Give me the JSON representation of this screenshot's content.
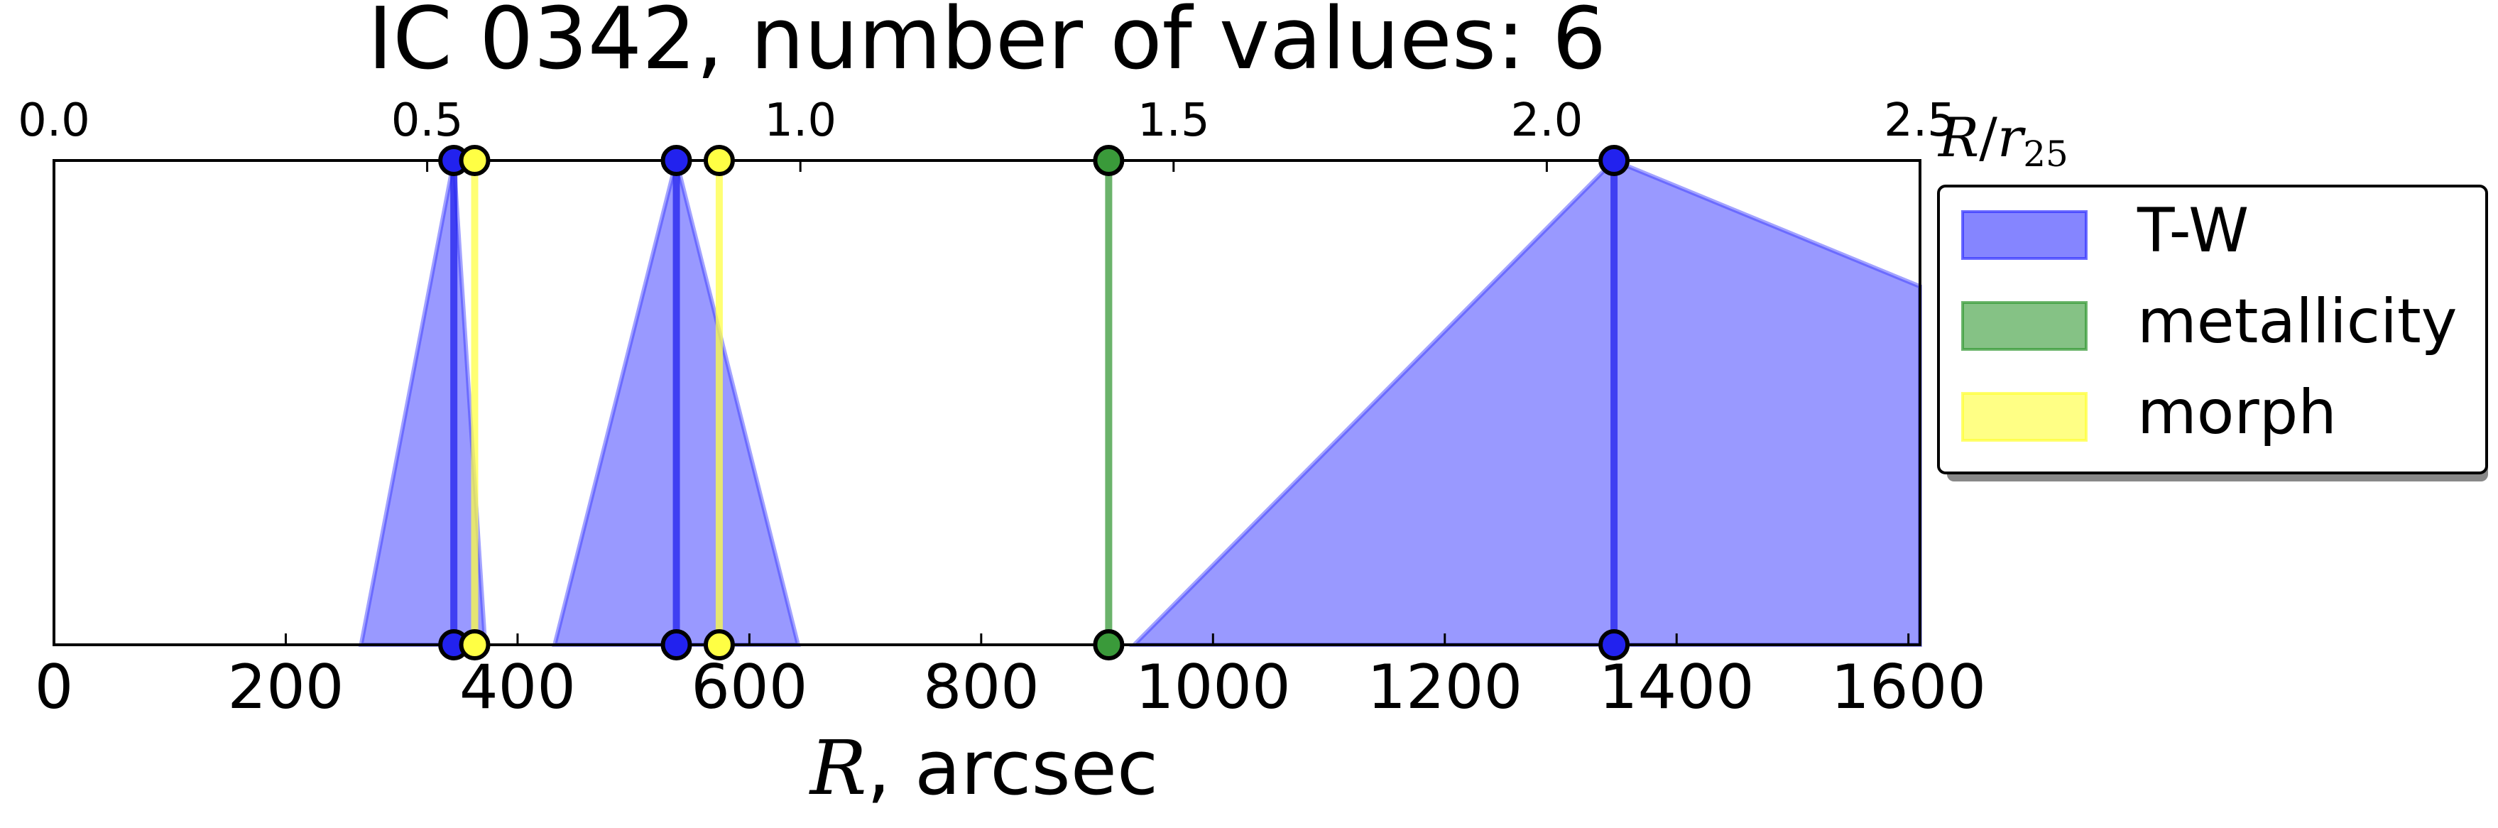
{
  "chart_data": {
    "type": "area",
    "title": "IC 0342, number of values: 6",
    "xlabel_symbol": "R",
    "xlabel_unit": ", arcsec",
    "top_xlabel_num": "R",
    "top_xlabel_den": "r",
    "top_xlabel_sub": "25",
    "xlim": [
      0,
      1610
    ],
    "top_xlim": [
      0,
      2.5
    ],
    "ylim": [
      0,
      1
    ],
    "xticks": [
      0,
      200,
      400,
      600,
      800,
      1000,
      1200,
      1400,
      1600
    ],
    "top_xticks": [
      "0.0",
      "0.5",
      "1.0",
      "1.5",
      "2.0",
      "2.5"
    ],
    "legend_position": "right",
    "series": [
      {
        "name": "T-W",
        "color": "#2222ee",
        "fill": "#3333ff",
        "lines": [
          345,
          537,
          1346
        ],
        "areas": [
          [
            [
              265,
              0
            ],
            [
              345,
              1
            ],
            [
              372,
              0
            ]
          ],
          [
            [
              432,
              0
            ],
            [
              537,
              1
            ],
            [
              642,
              0
            ]
          ],
          [
            [
              932,
              0
            ],
            [
              1346,
              1
            ],
            [
              1610,
              0.74
            ],
            [
              1610,
              0
            ]
          ]
        ]
      },
      {
        "name": "metallicity",
        "color": "#3a9a3a",
        "fill": "#339933",
        "lines": [
          910
        ],
        "areas": []
      },
      {
        "name": "morph",
        "color": "#ffff44",
        "fill": "#ffff33",
        "lines": [
          363,
          574
        ],
        "areas": []
      }
    ]
  }
}
